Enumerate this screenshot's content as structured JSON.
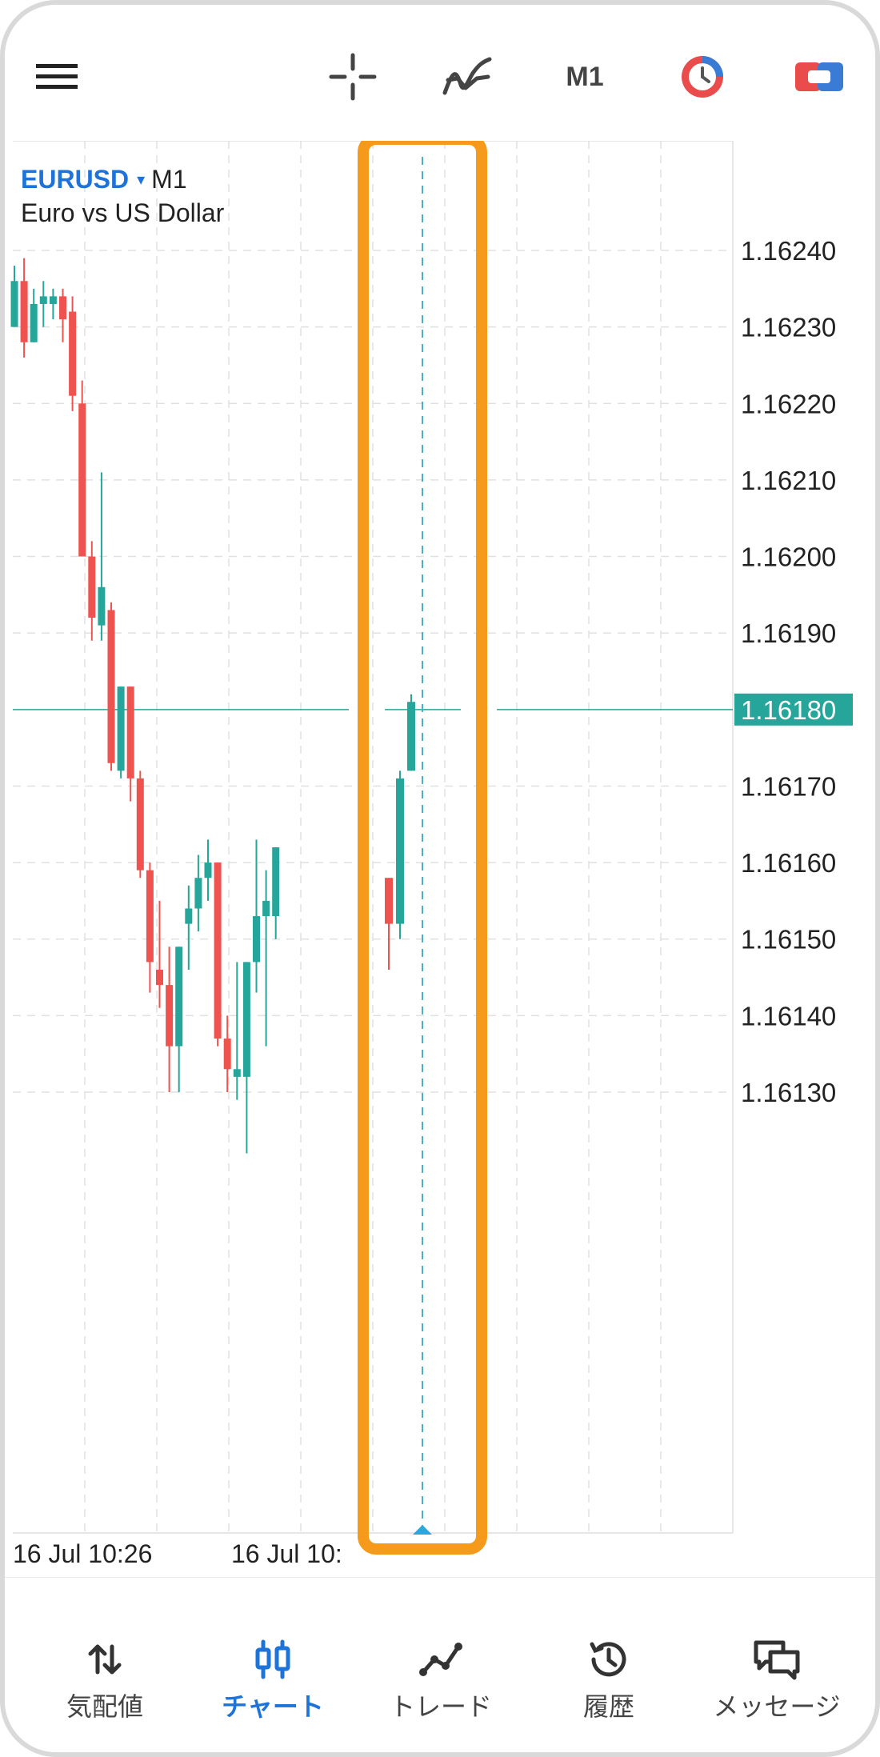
{
  "toolbar": {
    "menu_icon": "hamburger-menu-icon",
    "crosshair_icon": "crosshair-icon",
    "indicators_icon": "indicators-icon",
    "timeframe": "M1",
    "one_click_icon": "clock-icon",
    "trade_icon": "trade-toggle-icon"
  },
  "chart": {
    "symbol": "EURUSD",
    "symbol_dropdown_glyph": "▾",
    "timeframe": "M1",
    "description": "Euro vs US Dollar",
    "current_price_label": "1.16180"
  },
  "chart_data": {
    "type": "candlestick",
    "y_ticks": [
      "1.16240",
      "1.16230",
      "1.16220",
      "1.16210",
      "1.16200",
      "1.16190",
      "1.16170",
      "1.16160",
      "1.16150",
      "1.16140",
      "1.16130"
    ],
    "x_ticks": [
      "16 Jul 10:26",
      "16 Jul 10:"
    ],
    "ylim": [
      1.16118,
      1.1625
    ],
    "current_price": 1.1618,
    "grid": true,
    "colors": {
      "up": "#26a69a",
      "down": "#ef5350",
      "grid": "#e0e0e0",
      "price_line": "#26a69a",
      "highlight": "#f59a1b",
      "cursor": "#4ab0c8"
    },
    "candles_left": [
      {
        "o": 1.1623,
        "h": 1.16238,
        "l": 1.1623,
        "c": 1.16236
      },
      {
        "o": 1.16236,
        "h": 1.16239,
        "l": 1.16226,
        "c": 1.16228
      },
      {
        "o": 1.16228,
        "h": 1.16235,
        "l": 1.16228,
        "c": 1.16233
      },
      {
        "o": 1.16233,
        "h": 1.16236,
        "l": 1.1623,
        "c": 1.16234
      },
      {
        "o": 1.16233,
        "h": 1.16235,
        "l": 1.16231,
        "c": 1.16234
      },
      {
        "o": 1.16234,
        "h": 1.16235,
        "l": 1.16228,
        "c": 1.16231
      },
      {
        "o": 1.16232,
        "h": 1.16234,
        "l": 1.16219,
        "c": 1.16221
      },
      {
        "o": 1.1622,
        "h": 1.16223,
        "l": 1.162,
        "c": 1.162
      },
      {
        "o": 1.162,
        "h": 1.16202,
        "l": 1.16189,
        "c": 1.16192
      },
      {
        "o": 1.16191,
        "h": 1.16211,
        "l": 1.16189,
        "c": 1.16196
      },
      {
        "o": 1.16193,
        "h": 1.16194,
        "l": 1.16172,
        "c": 1.16173
      },
      {
        "o": 1.16172,
        "h": 1.16183,
        "l": 1.16171,
        "c": 1.16183
      },
      {
        "o": 1.16183,
        "h": 1.16183,
        "l": 1.16168,
        "c": 1.16171
      },
      {
        "o": 1.16171,
        "h": 1.16172,
        "l": 1.16158,
        "c": 1.16159
      },
      {
        "o": 1.16159,
        "h": 1.1616,
        "l": 1.16143,
        "c": 1.16147
      },
      {
        "o": 1.16146,
        "h": 1.16155,
        "l": 1.16141,
        "c": 1.16144
      },
      {
        "o": 1.16144,
        "h": 1.16149,
        "l": 1.1613,
        "c": 1.16136
      },
      {
        "o": 1.16136,
        "h": 1.16149,
        "l": 1.1613,
        "c": 1.16149
      },
      {
        "o": 1.16152,
        "h": 1.16157,
        "l": 1.16146,
        "c": 1.16154
      },
      {
        "o": 1.16154,
        "h": 1.16161,
        "l": 1.16151,
        "c": 1.16158
      },
      {
        "o": 1.16158,
        "h": 1.16163,
        "l": 1.16155,
        "c": 1.1616
      },
      {
        "o": 1.1616,
        "h": 1.1616,
        "l": 1.16136,
        "c": 1.16137
      },
      {
        "o": 1.16137,
        "h": 1.1614,
        "l": 1.1613,
        "c": 1.16133
      },
      {
        "o": 1.16132,
        "h": 1.16147,
        "l": 1.16129,
        "c": 1.16133
      },
      {
        "o": 1.16132,
        "h": 1.16147,
        "l": 1.16122,
        "c": 1.16147
      },
      {
        "o": 1.16147,
        "h": 1.16163,
        "l": 1.16143,
        "c": 1.16153
      },
      {
        "o": 1.16153,
        "h": 1.16159,
        "l": 1.16136,
        "c": 1.16155
      },
      {
        "o": 1.16153,
        "h": 1.16162,
        "l": 1.1615,
        "c": 1.16162
      }
    ],
    "candles_right": [
      {
        "o": 1.16158,
        "h": 1.16158,
        "l": 1.16146,
        "c": 1.16152
      },
      {
        "o": 1.16152,
        "h": 1.16172,
        "l": 1.1615,
        "c": 1.16171
      },
      {
        "o": 1.16172,
        "h": 1.16182,
        "l": 1.16172,
        "c": 1.16181
      }
    ]
  },
  "bottom_nav": {
    "items": [
      {
        "icon": "sort-arrows-icon",
        "label": "気配値"
      },
      {
        "icon": "candlestick-icon",
        "label": "チャート"
      },
      {
        "icon": "trade-line-icon",
        "label": "トレード"
      },
      {
        "icon": "history-icon",
        "label": "履歴"
      },
      {
        "icon": "chat-icon",
        "label": "メッセージ"
      }
    ]
  }
}
